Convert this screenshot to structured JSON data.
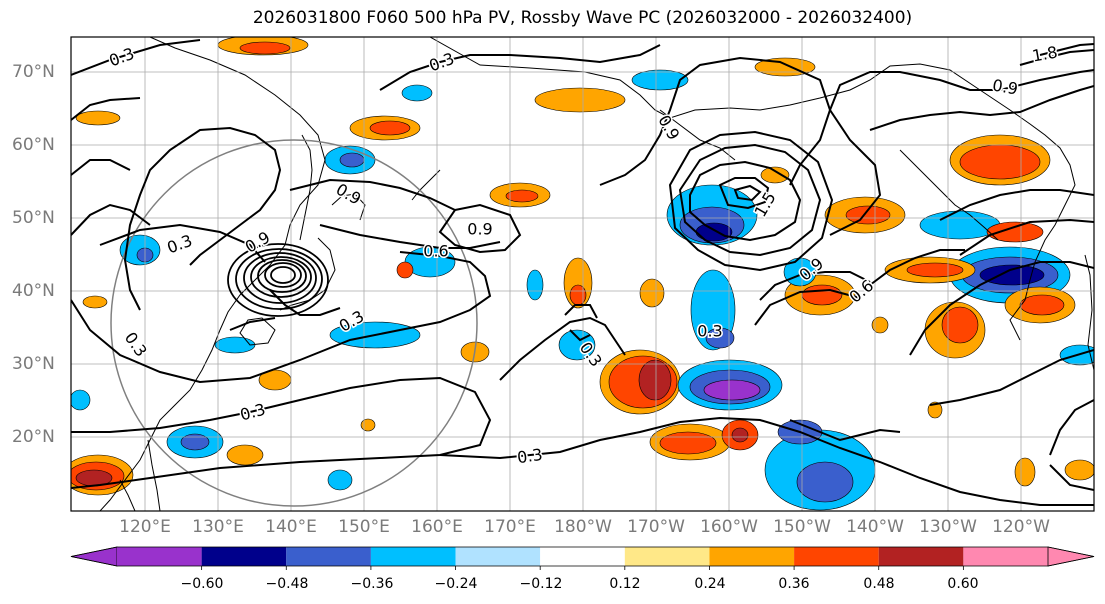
{
  "title": "2026031800 F060 500 hPa PV, Rossby Wave PC (2026032000 - 2026032400)",
  "lat_labels": [
    "70°N",
    "60°N",
    "50°N",
    "40°N",
    "30°N",
    "20°N"
  ],
  "lon_labels": [
    "120°E",
    "130°E",
    "140°E",
    "150°E",
    "160°E",
    "170°E",
    "180°W",
    "170°W",
    "160°W",
    "150°W",
    "140°W",
    "130°W",
    "120°W"
  ],
  "contour_labels": [
    "0.3",
    "0.3",
    "0.3",
    "0.3",
    "0.3",
    "0.3",
    "0.3",
    "0.3",
    "0.3",
    "0.6",
    "0.6",
    "0.9",
    "0.9",
    "0.9",
    "0.9",
    "0.9",
    "0.9",
    "1.5",
    "1.8"
  ],
  "colorbar": {
    "ticks": [
      "−0.60",
      "−0.48",
      "−0.36",
      "−0.24",
      "−0.12",
      "0.12",
      "0.24",
      "0.36",
      "0.48",
      "0.60"
    ],
    "colors": [
      "#9932cc",
      "#00008b",
      "#3a5fcd",
      "#00bfff",
      "#b0e2ff",
      "#ffffff",
      "#ffe888",
      "#ffa500",
      "#ff4500",
      "#b22222",
      "#ff88b0"
    ]
  }
}
